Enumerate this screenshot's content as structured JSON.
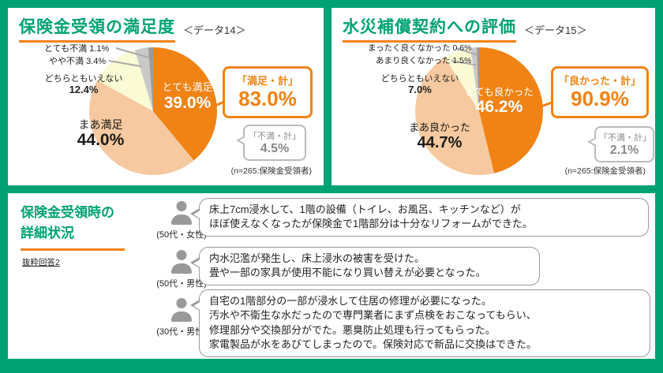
{
  "colors": {
    "brand_green": "#00a273",
    "accent_orange": "#f08314",
    "gray_note": "#8a8a8a"
  },
  "left_panel": {
    "tag": "＜データ14＞",
    "callout_label": "「満足・計」",
    "callout_value": "83.0%",
    "dissat_label": "「不満・計」",
    "dissat_value": "4.5%",
    "n_note": "(n=265:保険金受領者)"
  },
  "right_panel": {
    "tag": "＜データ15＞",
    "callout_label": "「良かった・計」",
    "callout_value": "90.9%",
    "dissat_label": "「不満・計」",
    "dissat_value": "2.1%",
    "n_note": "(n=265:保険金受領者)"
  },
  "bottom_panel": {
    "title_line1": "保険金受領時の",
    "title_line2": "詳細状況",
    "subnote": "抜粋回答2",
    "testimonials": [
      {
        "who": "(50代・女性)",
        "lines": [
          "床上7cm浸水して、1階の設備（トイレ、お風呂、キッチンなど）が",
          "ほぼ使えなくなったが保険金で1階部分は十分なリフォームができた。"
        ]
      },
      {
        "who": "(50代・男性)",
        "lines": [
          "内水氾濫が発生し、床上浸水の被害を受けた。",
          "畳や一部の家具が使用不能になり買い替えが必要となった。"
        ]
      },
      {
        "who": "(30代・男性)",
        "lines": [
          "自宅の1階部分の一部が浸水して住居の修理が必要になった。",
          "汚水や不衛生な水だったので専門業者にまず点検をおこなってもらい、",
          "修理部分や交換部分がでた。悪臭防止処理も行ってもらった。",
          "家電製品が水をあびてしまったので。保険対応で新品に交換はできた。"
        ]
      }
    ]
  },
  "chart_data": [
    {
      "type": "pie",
      "title": "保険金受領の満足度",
      "start_angle_deg": 0,
      "direction": "clockwise",
      "slices": [
        {
          "label": "とても満足",
          "value": 39.0,
          "pct": "39.0%",
          "color": "#f08314"
        },
        {
          "label": "まあ満足",
          "value": 44.0,
          "pct": "44.0%",
          "color": "#f6c9a0"
        },
        {
          "label": "どちらともいえない",
          "value": 12.4,
          "pct": "12.4%",
          "color": "#fafad4"
        },
        {
          "label": "やや不満",
          "value": 3.4,
          "pct": "3.4%",
          "color": "#c9c9c9"
        },
        {
          "label": "とても不満",
          "value": 1.1,
          "pct": "1.1%",
          "color": "#9b9b9b"
        }
      ],
      "annotations": {
        "satisfied_total": "83.0%",
        "dissatisfied_total": "4.5%"
      },
      "n_note": "(n=265:保険金受領者)"
    },
    {
      "type": "pie",
      "title": "水災補償契約への評価",
      "start_angle_deg": 0,
      "direction": "clockwise",
      "slices": [
        {
          "label": "とても良かった",
          "value": 46.2,
          "pct": "46.2%",
          "color": "#f08314"
        },
        {
          "label": "まあ良かった",
          "value": 44.7,
          "pct": "44.7%",
          "color": "#f6c9a0"
        },
        {
          "label": "どちらともいえない",
          "value": 7.0,
          "pct": "7.0%",
          "color": "#fafad4"
        },
        {
          "label": "あまり良くなかった",
          "value": 1.5,
          "pct": "1.5%",
          "color": "#c9c9c9"
        },
        {
          "label": "まったく良くなかった",
          "value": 0.6,
          "pct": "0.6%",
          "color": "#9b9b9b"
        }
      ],
      "annotations": {
        "good_total": "90.9%",
        "dissatisfied_total": "2.1%"
      },
      "n_note": "(n=265:保険金受領者)"
    }
  ]
}
